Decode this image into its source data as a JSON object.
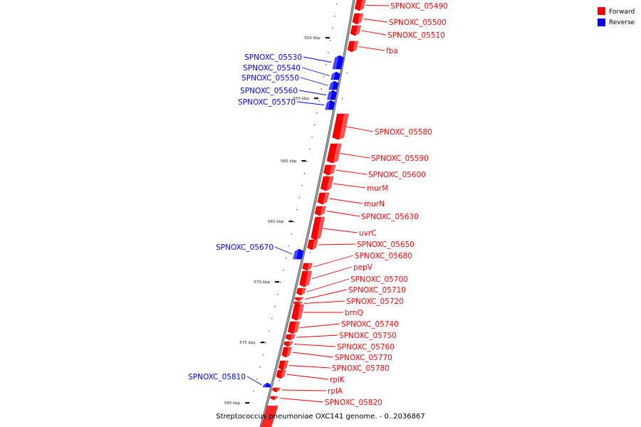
{
  "colors": {
    "forward": "#ff0000",
    "reverse": "#0000ff",
    "backbone": "#888888"
  },
  "legend": [
    {
      "label": "Forward",
      "strand": "forward"
    },
    {
      "label": "Reverse",
      "strand": "reverse"
    }
  ],
  "caption": "Streptococcus pneumoniae OXC141 genome. - 0..2036867",
  "ticks": [
    "550 kbp",
    "555 kbp",
    "560 kbp",
    "565 kbp",
    "570 kbp",
    "575 kbp",
    "580 kbp"
  ],
  "genes": [
    {
      "label": "SPNOXC_05490",
      "strand": "forward"
    },
    {
      "label": "SPNOXC_05500",
      "strand": "forward"
    },
    {
      "label": "SPNOXC_05510",
      "strand": "forward"
    },
    {
      "label": "fba",
      "strand": "forward"
    },
    {
      "label": "SPNOXC_05530",
      "strand": "reverse"
    },
    {
      "label": "SPNOXC_05540",
      "strand": "reverse"
    },
    {
      "label": "SPNOXC_05550",
      "strand": "reverse"
    },
    {
      "label": "SPNOXC_05560",
      "strand": "reverse"
    },
    {
      "label": "SPNOXC_05570",
      "strand": "reverse"
    },
    {
      "label": "SPNOXC_05580",
      "strand": "forward"
    },
    {
      "label": "SPNOXC_05590",
      "strand": "forward"
    },
    {
      "label": "SPNOXC_05600",
      "strand": "forward"
    },
    {
      "label": "murM",
      "strand": "forward"
    },
    {
      "label": "murN",
      "strand": "forward"
    },
    {
      "label": "SPNOXC_05630",
      "strand": "forward"
    },
    {
      "label": "uvrC",
      "strand": "forward"
    },
    {
      "label": "SPNOXC_05650",
      "strand": "forward"
    },
    {
      "label": "SPNOXC_05670",
      "strand": "reverse"
    },
    {
      "label": "SPNOXC_05680",
      "strand": "forward"
    },
    {
      "label": "pepV",
      "strand": "forward"
    },
    {
      "label": "SPNOXC_05700",
      "strand": "forward"
    },
    {
      "label": "SPNOXC_05710",
      "strand": "forward"
    },
    {
      "label": "SPNOXC_05720",
      "strand": "forward"
    },
    {
      "label": "brnQ",
      "strand": "forward"
    },
    {
      "label": "SPNOXC_05740",
      "strand": "forward"
    },
    {
      "label": "SPNOXC_05750",
      "strand": "forward"
    },
    {
      "label": "SPNOXC_05760",
      "strand": "forward"
    },
    {
      "label": "SPNOXC_05770",
      "strand": "forward"
    },
    {
      "label": "SPNOXC_05780",
      "strand": "forward"
    },
    {
      "label": "rplK",
      "strand": "forward"
    },
    {
      "label": "SPNOXC_05810",
      "strand": "reverse"
    },
    {
      "label": "rplA",
      "strand": "forward"
    },
    {
      "label": "SPNOXC_05820",
      "strand": "forward"
    }
  ]
}
